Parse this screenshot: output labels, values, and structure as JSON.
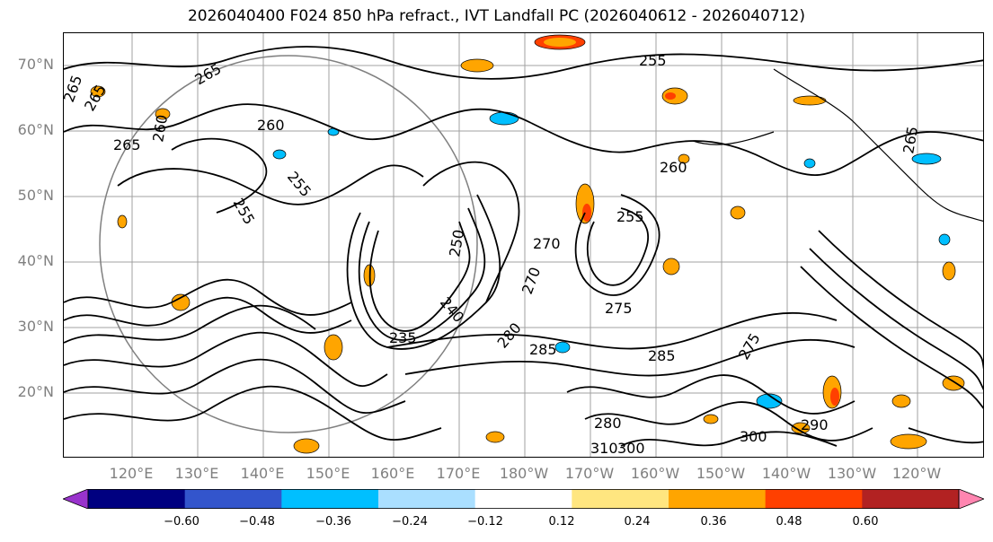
{
  "title": "2026040400 F024 850 hPa refract., IVT Landfall PC (2026040612 - 2026040712)",
  "lat_labels": [
    "70°N",
    "60°N",
    "50°N",
    "40°N",
    "30°N",
    "20°N"
  ],
  "lon_labels": [
    "120°E",
    "130°E",
    "140°E",
    "150°E",
    "160°E",
    "170°E",
    "180°W",
    "170°W",
    "160°W",
    "150°W",
    "140°W",
    "130°W",
    "120°W"
  ],
  "contour_labels": [
    "265",
    "265",
    "265",
    "260",
    "265",
    "260",
    "255",
    "255",
    "250",
    "255",
    "270",
    "240",
    "235",
    "270",
    "275",
    "280",
    "285",
    "285",
    "260",
    "255",
    "265",
    "275",
    "280",
    "290",
    "300",
    "310",
    "300"
  ],
  "colorbar": {
    "colors": [
      "#9933cc",
      "#000080",
      "#3355cc",
      "#00bfff",
      "#aadfff",
      "#ffffff",
      "#ffe680",
      "#ffa500",
      "#ff4000",
      "#b22222",
      "#ff85b0"
    ],
    "tick_labels": [
      "−0.60",
      "−0.48",
      "−0.36",
      "−0.24",
      "−0.12",
      "0.12",
      "0.24",
      "0.36",
      "0.48",
      "0.60"
    ]
  },
  "colors": {
    "contour": "#000000",
    "grid": "#a0a0a0",
    "axis_label": "#808080",
    "circle": "#808080"
  }
}
